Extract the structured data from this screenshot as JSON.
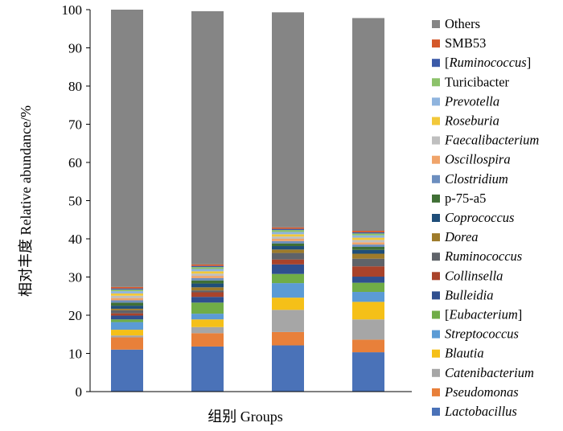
{
  "chart_data": {
    "type": "bar",
    "stacked": true,
    "xlabel": "组别 Groups",
    "ylabel": "相对丰度 Relative abundance/%",
    "ylim": [
      0,
      100
    ],
    "yticks": [
      0,
      10,
      20,
      30,
      40,
      50,
      60,
      70,
      80,
      90,
      100
    ],
    "categories": [
      "",
      "",
      "",
      ""
    ],
    "grid": false,
    "legend_position": "right",
    "series": [
      {
        "name": "Lactobacillus",
        "italic": true,
        "color": "#4a72b8",
        "values": [
          11.0,
          11.8,
          12.1,
          10.3
        ]
      },
      {
        "name": "Pseudomonas",
        "italic": true,
        "color": "#e8803a",
        "values": [
          3.2,
          3.5,
          3.5,
          3.3
        ]
      },
      {
        "name": "Catenibacterium",
        "italic": true,
        "color": "#a6a6a6",
        "values": [
          0.5,
          1.6,
          5.8,
          5.3
        ]
      },
      {
        "name": "Blautia",
        "italic": true,
        "color": "#f5c018",
        "values": [
          1.5,
          2.0,
          3.2,
          4.6
        ]
      },
      {
        "name": "Streptococcus",
        "italic": true,
        "color": "#5b9bd5",
        "values": [
          2.0,
          1.5,
          3.8,
          2.6
        ]
      },
      {
        "name": "[Eubacterium]",
        "italic": true,
        "bracket": true,
        "color": "#70ad47",
        "values": [
          0.7,
          2.9,
          2.4,
          2.4
        ]
      },
      {
        "name": "Bulleidia",
        "italic": true,
        "color": "#2f4f8f",
        "values": [
          1.0,
          1.5,
          2.5,
          1.6
        ]
      },
      {
        "name": "Collinsella",
        "italic": true,
        "color": "#a9432b",
        "values": [
          0.6,
          1.2,
          1.3,
          2.7
        ]
      },
      {
        "name": "Ruminococcus",
        "italic": true,
        "color": "#5f6369",
        "values": [
          0.8,
          0.5,
          1.7,
          2.0
        ]
      },
      {
        "name": "Dorea",
        "italic": true,
        "color": "#9e7b2a",
        "values": [
          0.4,
          0.8,
          0.9,
          1.3
        ]
      },
      {
        "name": "Coprococcus",
        "italic": true,
        "color": "#1f4e79",
        "values": [
          0.8,
          1.0,
          0.9,
          1.0
        ]
      },
      {
        "name": "p-75-a5",
        "italic": false,
        "color": "#3f6f35",
        "values": [
          0.8,
          0.8,
          0.7,
          0.8
        ]
      },
      {
        "name": "Clostridium",
        "italic": true,
        "color": "#6c8ebf",
        "values": [
          0.6,
          0.6,
          0.6,
          0.6
        ]
      },
      {
        "name": "Oscillospira",
        "italic": true,
        "color": "#f0a46a",
        "values": [
          0.6,
          0.6,
          0.6,
          0.6
        ]
      },
      {
        "name": "Faecalibacterium",
        "italic": true,
        "color": "#bfbfbf",
        "values": [
          0.6,
          0.6,
          0.6,
          0.6
        ]
      },
      {
        "name": "Roseburia",
        "italic": true,
        "color": "#f2c83a",
        "values": [
          0.6,
          0.6,
          0.6,
          0.6
        ]
      },
      {
        "name": "Prevotella",
        "italic": true,
        "color": "#8fb4de",
        "values": [
          0.6,
          0.6,
          0.6,
          0.6
        ]
      },
      {
        "name": "Turicibacter",
        "italic": false,
        "color": "#8cc26a",
        "values": [
          0.4,
          0.5,
          0.5,
          0.5
        ]
      },
      {
        "name": "[Ruminococcus]",
        "italic": true,
        "bracket": true,
        "color": "#3b5aa8",
        "values": [
          0.3,
          0.3,
          0.3,
          0.3
        ]
      },
      {
        "name": "SMB53",
        "italic": false,
        "color": "#d4582a",
        "values": [
          0.4,
          0.4,
          0.4,
          0.4
        ]
      },
      {
        "name": "Others",
        "italic": false,
        "color": "#858585",
        "values": [
          72.6,
          66.3,
          56.3,
          55.7
        ]
      }
    ]
  }
}
